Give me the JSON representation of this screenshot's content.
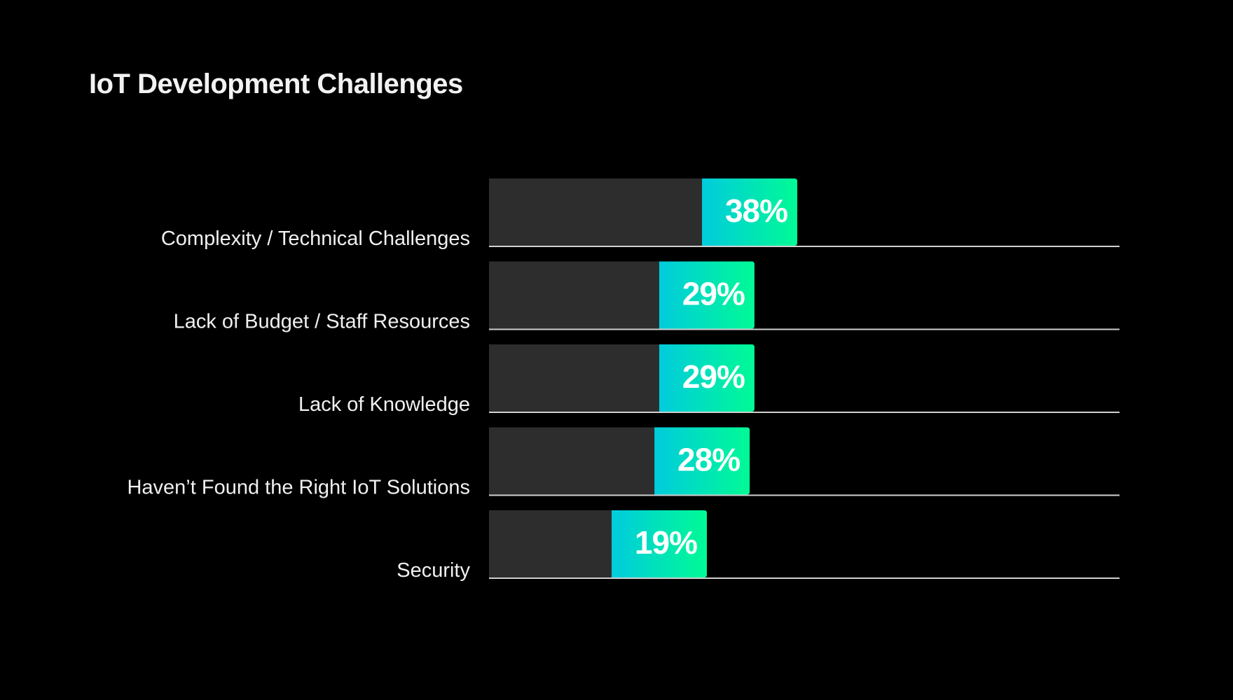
{
  "title": "IoT Development Challenges",
  "colors": {
    "background": "#000000",
    "track": "#2d2d2d",
    "gradient_start": "#00cbdd",
    "gradient_end": "#00fa95",
    "baseline": "#d0d0d0",
    "text": "#f0f0f0"
  },
  "chart_data": {
    "type": "bar",
    "orientation": "horizontal",
    "title": "IoT Development Challenges",
    "xlabel": "",
    "ylabel": "",
    "categories": [
      "Complexity / Technical Challenges",
      "Lack of Budget / Staff Resources",
      "Lack of Knowledge",
      "Haven’t Found the Right IoT Solutions",
      "Security"
    ],
    "values": [
      38,
      29,
      29,
      28,
      19
    ],
    "value_labels": [
      "38%",
      "29%",
      "29%",
      "28%",
      "19%"
    ],
    "unit": "%",
    "grid": false,
    "legend": "none"
  }
}
